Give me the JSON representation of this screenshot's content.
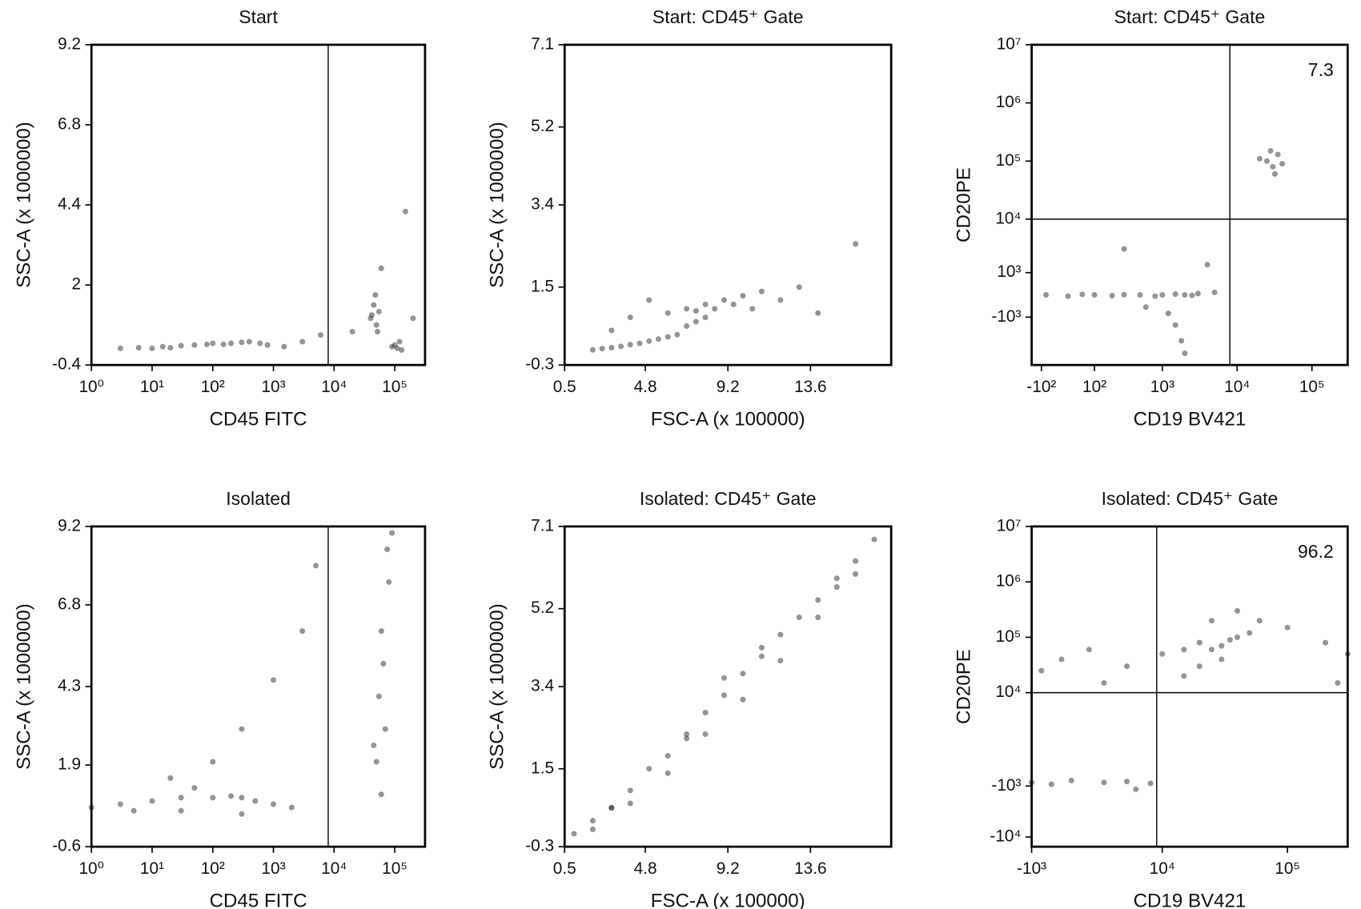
{
  "chart_data": [
    {
      "type": "scatter",
      "title": "Start",
      "xlabel": "CD45 FITC",
      "ylabel": "SSC-A (x 1000000)",
      "xscale": "log",
      "xlim": [
        1,
        316000
      ],
      "ylim": [
        -0.4,
        9.2
      ],
      "xticks": [
        {
          "value": 1,
          "label": "10⁰"
        },
        {
          "value": 10,
          "label": "10¹"
        },
        {
          "value": 100,
          "label": "10²"
        },
        {
          "value": 1000,
          "label": "10³"
        },
        {
          "value": 10000,
          "label": "10⁴"
        },
        {
          "value": 100000,
          "label": "10⁵"
        }
      ],
      "yticks": [
        9.2,
        6.8,
        4.4,
        2,
        -0.4
      ],
      "gate_x": 8000,
      "series": [
        {
          "color": "#111111",
          "x": [
            3,
            6,
            10,
            15,
            20,
            30,
            50,
            80,
            100,
            150,
            200,
            300,
            400,
            600,
            800,
            1500,
            3000,
            6000,
            40000,
            45000,
            50000,
            55000,
            48000,
            42000,
            52000,
            90000,
            110000,
            130000,
            100000,
            120000,
            60000,
            20000,
            150000,
            200000
          ],
          "y": [
            0.1,
            0.12,
            0.1,
            0.15,
            0.12,
            0.18,
            0.2,
            0.22,
            0.25,
            0.22,
            0.25,
            0.28,
            0.3,
            0.25,
            0.2,
            0.15,
            0.3,
            0.5,
            1.0,
            1.4,
            0.8,
            1.2,
            1.7,
            1.1,
            0.6,
            0.15,
            0.1,
            0.05,
            0.2,
            0.3,
            2.5,
            0.6,
            4.2,
            1.0
          ]
        }
      ]
    },
    {
      "type": "scatter",
      "title": "Start: CD45⁺ Gate",
      "xlabel": "FSC-A (x 100000)",
      "ylabel": "SSC-A (x 1000000)",
      "xscale": "linear",
      "xlim": [
        0.5,
        17.9
      ],
      "ylim": [
        -0.3,
        7.1
      ],
      "xticks": [
        0.5,
        4.8,
        9.2,
        13.6
      ],
      "yticks": [
        7.1,
        5.2,
        3.4,
        1.5,
        -0.3
      ],
      "series": [
        {
          "color": "#111111",
          "x": [
            2,
            2.5,
            3,
            3.5,
            4,
            4.5,
            5,
            5.5,
            6,
            6.5,
            7,
            7.5,
            8,
            6,
            7,
            7.5,
            8,
            8.5,
            9,
            9.5,
            10,
            10.5,
            11,
            12,
            13,
            4,
            5,
            3,
            14,
            16
          ],
          "y": [
            0.05,
            0.08,
            0.1,
            0.13,
            0.17,
            0.2,
            0.25,
            0.3,
            0.35,
            0.4,
            0.6,
            0.7,
            0.8,
            0.9,
            1.0,
            0.95,
            1.1,
            1.0,
            1.2,
            1.1,
            1.3,
            1.0,
            1.4,
            1.2,
            1.5,
            0.8,
            1.2,
            0.5,
            0.9,
            2.5
          ]
        }
      ]
    },
    {
      "type": "scatter",
      "title": "Start: CD45⁺ Gate",
      "xlabel": "CD19 BV421",
      "ylabel": "CD20PE",
      "xscale": "asinh",
      "yscale": "asinh",
      "xlim": [
        -150,
        300000
      ],
      "ylim": [
        -8000,
        10000000
      ],
      "xticks": [
        {
          "value": -100,
          "label": "-10²"
        },
        {
          "value": 100,
          "label": "10²"
        },
        {
          "value": 1000,
          "label": "10³"
        },
        {
          "value": 10000,
          "label": "10⁴"
        },
        {
          "value": 100000,
          "label": "10⁵"
        }
      ],
      "yticks": [
        {
          "value": 10000000,
          "label": "10⁷"
        },
        {
          "value": 1000000,
          "label": "10⁶"
        },
        {
          "value": 100000,
          "label": "10⁵"
        },
        {
          "value": 10000,
          "label": "10⁴"
        },
        {
          "value": 1000,
          "label": "10³"
        },
        {
          "value": -1000,
          "label": "-10³"
        }
      ],
      "gate_x": 8000,
      "gate_y": 10000,
      "annotation": "7.3",
      "series": [
        {
          "color": "#111111",
          "x": [
            -80,
            0,
            50,
            100,
            200,
            300,
            500,
            800,
            1000,
            1500,
            2000,
            2500,
            3000,
            5000,
            1500,
            1800,
            1200,
            2000,
            25000,
            30000,
            35000,
            40000,
            28000,
            32000,
            20000,
            300,
            600,
            4000
          ],
          "y": [
            0,
            -50,
            20,
            0,
            -30,
            10,
            0,
            -50,
            0,
            30,
            0,
            -20,
            50,
            100,
            -1500,
            -3000,
            -800,
            -5000,
            100000,
            80000,
            130000,
            90000,
            150000,
            60000,
            110000,
            3000,
            -500,
            1500
          ]
        }
      ]
    },
    {
      "type": "scatter",
      "title": "Isolated",
      "xlabel": "CD45 FITC",
      "ylabel": "SSC-A (x 1000000)",
      "xscale": "log",
      "xlim": [
        1,
        316000
      ],
      "ylim": [
        -0.6,
        9.2
      ],
      "xticks": [
        {
          "value": 1,
          "label": "10⁰"
        },
        {
          "value": 10,
          "label": "10¹"
        },
        {
          "value": 100,
          "label": "10²"
        },
        {
          "value": 1000,
          "label": "10³"
        },
        {
          "value": 10000,
          "label": "10⁴"
        },
        {
          "value": 100000,
          "label": "10⁵"
        }
      ],
      "yticks": [
        9.2,
        6.8,
        4.3,
        1.9,
        -0.6
      ],
      "gate_x": 8000,
      "series": [
        {
          "color": "#111111",
          "x": [
            1,
            3,
            10,
            30,
            100,
            200,
            300,
            500,
            1000,
            2000,
            50,
            20,
            5,
            100,
            300,
            1000,
            3000,
            60000,
            50000,
            70000,
            55000,
            65000,
            60000,
            80000,
            45000,
            75000,
            90000,
            300,
            30,
            5000
          ],
          "y": [
            0.6,
            0.7,
            0.8,
            0.9,
            0.9,
            0.95,
            0.9,
            0.8,
            0.7,
            0.6,
            1.2,
            1.5,
            0.5,
            2.0,
            3.0,
            4.5,
            6.0,
            1.0,
            2.0,
            3.0,
            4.0,
            5.0,
            6.0,
            7.5,
            2.5,
            8.5,
            9.0,
            0.4,
            0.5,
            8.0
          ]
        }
      ]
    },
    {
      "type": "scatter",
      "title": "Isolated: CD45⁺ Gate",
      "xlabel": "FSC-A (x 100000)",
      "ylabel": "SSC-A (x 1000000)",
      "xscale": "linear",
      "xlim": [
        0.5,
        17.9
      ],
      "ylim": [
        -0.3,
        7.1
      ],
      "xticks": [
        0.5,
        4.8,
        9.2,
        13.6
      ],
      "yticks": [
        7.1,
        5.2,
        3.4,
        1.5,
        -0.3
      ],
      "series": [
        {
          "color": "#111111",
          "x": [
            1,
            2,
            3,
            4,
            5,
            6,
            7,
            8,
            9,
            10,
            11,
            12,
            13,
            14,
            15,
            16,
            17,
            2,
            4,
            6,
            8,
            10,
            12,
            14,
            16,
            3,
            7,
            11,
            15,
            9
          ],
          "y": [
            0.0,
            0.3,
            0.6,
            1.0,
            1.5,
            1.8,
            2.3,
            2.8,
            3.2,
            3.7,
            4.1,
            4.6,
            5.0,
            5.4,
            5.9,
            6.3,
            6.8,
            0.1,
            0.7,
            1.4,
            2.3,
            3.1,
            4.0,
            5.0,
            6.0,
            0.6,
            2.2,
            4.3,
            5.7,
            3.6
          ]
        }
      ]
    },
    {
      "type": "scatter",
      "title": "Isolated: CD45⁺ Gate",
      "xlabel": "CD19 BV421",
      "ylabel": "CD20PE",
      "xscale": "asinh",
      "yscale": "asinh",
      "xlim": [
        -1000,
        300000
      ],
      "ylim": [
        -15000,
        10000000
      ],
      "xticks": [
        {
          "value": -1000,
          "label": "-10³"
        },
        {
          "value": 10000,
          "label": "10⁴"
        },
        {
          "value": 100000,
          "label": "10⁵"
        }
      ],
      "yticks": [
        {
          "value": 10000000,
          "label": "10⁷"
        },
        {
          "value": 1000000,
          "label": "10⁶"
        },
        {
          "value": 100000,
          "label": "10⁵"
        },
        {
          "value": 10000,
          "label": "10⁴"
        },
        {
          "value": -1000,
          "label": "-10³"
        },
        {
          "value": -10000,
          "label": "-10⁴"
        }
      ],
      "gate_x": 9000,
      "gate_y": 10000,
      "annotation": "96.2",
      "series": [
        {
          "color": "#111111",
          "x": [
            -1000,
            0,
            1000,
            3000,
            5000,
            8000,
            10000,
            15000,
            20000,
            25000,
            30000,
            35000,
            40000,
            50000,
            60000,
            100000,
            200000,
            300000,
            20000,
            30000,
            25000,
            40000,
            15000,
            5000,
            2000,
            500,
            -500,
            3000,
            6000,
            250000
          ],
          "y": [
            -800,
            -900,
            -700,
            -800,
            -750,
            -850,
            50000,
            60000,
            80000,
            60000,
            70000,
            90000,
            100000,
            120000,
            200000,
            150000,
            80000,
            50000,
            30000,
            40000,
            200000,
            300000,
            20000,
            30000,
            60000,
            40000,
            25000,
            15000,
            -1200,
            15000
          ]
        }
      ]
    }
  ]
}
